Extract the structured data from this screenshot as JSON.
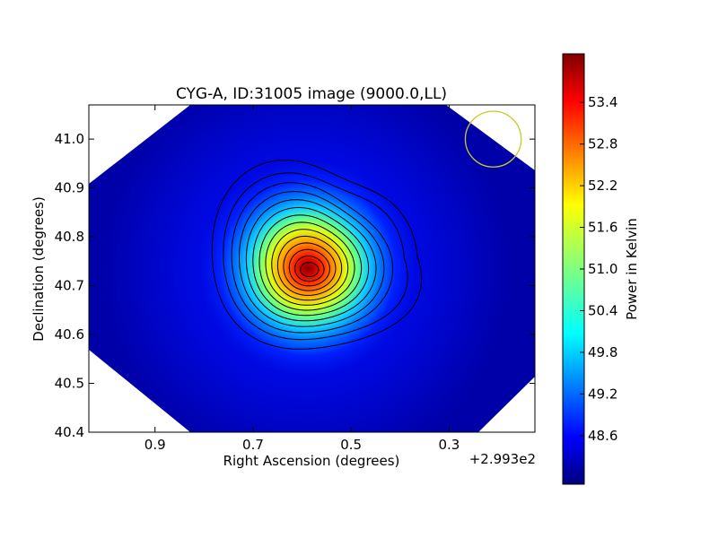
{
  "chart_data": {
    "type": "heatmap",
    "title": "CYG-A, ID:31005 image (9000.0,LL)",
    "xlabel": "Right Ascension (degrees)",
    "ylabel": "Declination (degrees)",
    "x_offset_label": "+2.993e2",
    "x_ticks": [
      {
        "value": 0.9,
        "label": "0.9"
      },
      {
        "value": 0.7,
        "label": "0.7"
      },
      {
        "value": 0.5,
        "label": "0.5"
      },
      {
        "value": 0.3,
        "label": "0.3"
      }
    ],
    "y_ticks": [
      {
        "value": 41.0,
        "label": "41.0"
      },
      {
        "value": 40.9,
        "label": "40.9"
      },
      {
        "value": 40.8,
        "label": "40.8"
      },
      {
        "value": 40.7,
        "label": "40.7"
      },
      {
        "value": 40.6,
        "label": "40.6"
      },
      {
        "value": 40.5,
        "label": "40.5"
      },
      {
        "value": 40.4,
        "label": "40.4"
      }
    ],
    "xlim": [
      1.035,
      0.125
    ],
    "ylim": [
      40.4,
      41.07
    ],
    "source_peak": {
      "ra": 0.585,
      "dec": 40.733,
      "value": 54.0
    },
    "beam_circle": {
      "ra": 0.21,
      "dec": 41.0,
      "radius_deg": 0.057,
      "color": "#c8c832"
    },
    "colorbar": {
      "label": "Power in Kelvin",
      "min": 47.9,
      "max": 54.1,
      "ticks": [
        "53.4",
        "52.8",
        "52.2",
        "51.6",
        "51.0",
        "50.4",
        "49.8",
        "49.2",
        "48.6"
      ],
      "colormap": "jet"
    },
    "contour_count": 14
  }
}
